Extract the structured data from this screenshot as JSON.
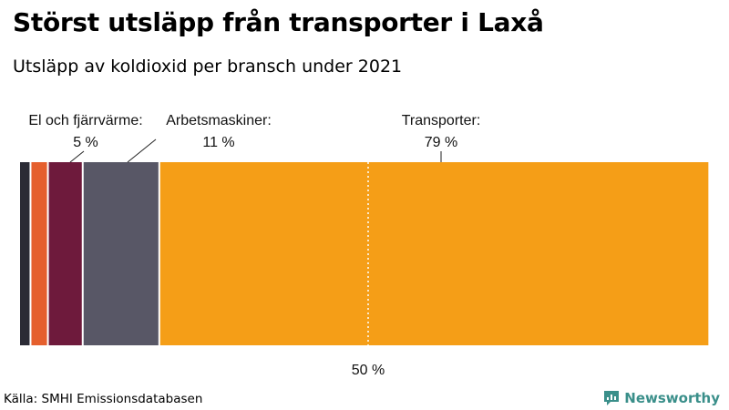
{
  "title": "Störst utsläpp från transporter i Laxå",
  "subtitle": "Utsläpp av koldioxid per bransch under 2021",
  "source": "Källa: SMHI Emissionsdatabasen",
  "brand": "Newsworthy",
  "chart_data": {
    "type": "bar",
    "orientation": "horizontal-stacked-100",
    "axis_range": [
      0,
      100
    ],
    "segments": [
      {
        "value": 1.5,
        "color": "#2b2b35"
      },
      {
        "value": 2.5,
        "color": "#e55f2d"
      },
      {
        "name_line1": "El och fjärrvärme:",
        "name_line2": "5 %",
        "value": 5,
        "color": "#6e1a3c"
      },
      {
        "name_line1": "Arbetsmaskiner:",
        "name_line2": "11 %",
        "value": 11,
        "color": "#585766"
      },
      {
        "name_line1": "Transporter:",
        "name_line2": "79 %",
        "value": 79,
        "color": "#f59e17"
      }
    ],
    "reference_line": {
      "value": 50,
      "label": "50 %"
    }
  }
}
